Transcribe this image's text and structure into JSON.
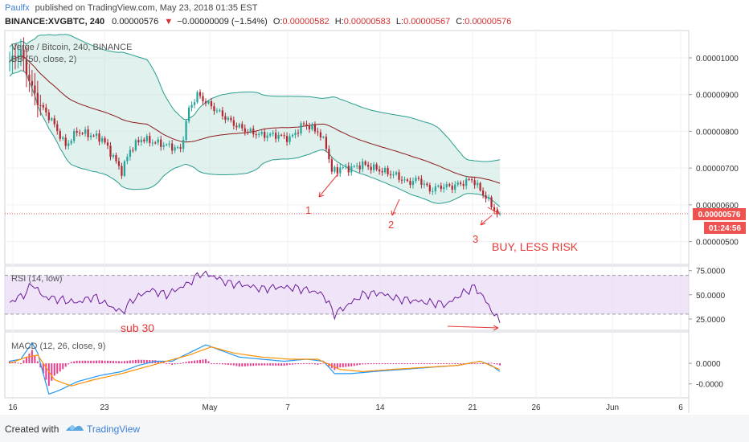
{
  "header": {
    "author": "Paulfx",
    "published": "published on TradingView.com, May 23, 2018 01:35 EST",
    "symbol": "BINANCE:XVGBTC, 240",
    "last": "0.00000576",
    "change": "−0.00000009 (−1.54%)",
    "ohlc": [
      {
        "k": "O:",
        "v": "0.00000582"
      },
      {
        "k": "H:",
        "v": "0.00000583"
      },
      {
        "k": "L:",
        "v": "0.00000567"
      },
      {
        "k": "C:",
        "v": "0.00000576"
      }
    ]
  },
  "colors": {
    "up": "#26a69a",
    "down": "#b22833",
    "accent": "#ef5350",
    "annot": "#e53935",
    "band": "#c8e6de",
    "bandLine": "#2a9d8f",
    "basis": "#8b1a1a"
  },
  "footer": {
    "created_with": "Created with",
    "brand": "TradingView"
  },
  "chart_data": [
    {
      "type": "candlestick",
      "title": "Verge / Bitcoin, 240, BINANCE",
      "indicator": "BB (50, close, 2)",
      "ylim": [
        4.4e-06,
        1.07e-05
      ],
      "yticks": [
        "0.00001000",
        "0.00000900",
        "0.00000800",
        "0.00000700",
        "0.00000600",
        "0.00000500"
      ],
      "ytick_values": [
        1e-05,
        9e-06,
        8e-06,
        7e-06,
        6e-06,
        5e-06
      ],
      "price_label": "0.00000576",
      "timer_label": "01:24:56",
      "x_axis_ticks": [
        "16",
        "23",
        "May",
        "7",
        "14",
        "21",
        "26",
        "Jun",
        "6"
      ],
      "close_anchors": [
        [
          0,
          9.9e-06
        ],
        [
          4,
          1.02e-05
        ],
        [
          6,
          9.6e-06
        ],
        [
          10,
          8.8e-06
        ],
        [
          15,
          8.3e-06
        ],
        [
          20,
          7.6e-06
        ],
        [
          24,
          8e-06
        ],
        [
          29,
          7.9e-06
        ],
        [
          33,
          7.8e-06
        ],
        [
          37,
          7.3e-06
        ],
        [
          40,
          6.9e-06
        ],
        [
          43,
          7.5e-06
        ],
        [
          47,
          7.8e-06
        ],
        [
          52,
          7.7e-06
        ],
        [
          57,
          7.6e-06
        ],
        [
          61,
          7.5e-06
        ],
        [
          64,
          8.6e-06
        ],
        [
          67,
          9e-06
        ],
        [
          70,
          8.8e-06
        ],
        [
          75,
          8.5e-06
        ],
        [
          80,
          8.2e-06
        ],
        [
          85,
          8e-06
        ],
        [
          90,
          7.9e-06
        ],
        [
          95,
          7.9e-06
        ],
        [
          100,
          7.8e-06
        ],
        [
          105,
          8.2e-06
        ],
        [
          110,
          8e-06
        ],
        [
          113,
          7.6e-06
        ],
        [
          115,
          6.9e-06
        ],
        [
          118,
          7e-06
        ],
        [
          122,
          7e-06
        ],
        [
          126,
          7.1e-06
        ],
        [
          130,
          7e-06
        ],
        [
          134,
          6.9e-06
        ],
        [
          138,
          6.8e-06
        ],
        [
          142,
          6.6e-06
        ],
        [
          146,
          6.7e-06
        ],
        [
          150,
          6.4e-06
        ],
        [
          154,
          6.5e-06
        ],
        [
          158,
          6.5e-06
        ],
        [
          162,
          6.6e-06
        ],
        [
          165,
          6.7e-06
        ],
        [
          168,
          6.4e-06
        ],
        [
          171,
          6.1e-06
        ],
        [
          174,
          5.76e-06
        ]
      ],
      "annotations": [
        "1",
        "2",
        "3",
        "BUY, LESS RISK"
      ]
    },
    {
      "type": "line",
      "title": "RSI (14, low)",
      "ylim": [
        15,
        78
      ],
      "yticks": [
        "75.0000",
        "50.0000",
        "25.0000"
      ],
      "ytick_values": [
        75,
        50,
        25
      ],
      "band": [
        30,
        70
      ],
      "anchors": [
        [
          0,
          42
        ],
        [
          6,
          52
        ],
        [
          8,
          62
        ],
        [
          12,
          48
        ],
        [
          18,
          45
        ],
        [
          24,
          42
        ],
        [
          30,
          48
        ],
        [
          36,
          38
        ],
        [
          40,
          32
        ],
        [
          44,
          45
        ],
        [
          50,
          55
        ],
        [
          56,
          50
        ],
        [
          60,
          56
        ],
        [
          64,
          62
        ],
        [
          68,
          72
        ],
        [
          72,
          70
        ],
        [
          78,
          62
        ],
        [
          84,
          60
        ],
        [
          90,
          56
        ],
        [
          96,
          58
        ],
        [
          102,
          57
        ],
        [
          108,
          54
        ],
        [
          112,
          50
        ],
        [
          116,
          30
        ],
        [
          120,
          38
        ],
        [
          126,
          50
        ],
        [
          132,
          52
        ],
        [
          138,
          46
        ],
        [
          144,
          44
        ],
        [
          150,
          42
        ],
        [
          156,
          40
        ],
        [
          162,
          52
        ],
        [
          166,
          58
        ],
        [
          169,
          48
        ],
        [
          172,
          34
        ],
        [
          175,
          22
        ]
      ],
      "annotation": "sub 30"
    },
    {
      "type": "macd",
      "title": "MACD (12, 26, close, 9)",
      "ylim": [
        -1.6,
        1.45
      ],
      "yticks": [
        "0.0000",
        "-0.0000"
      ],
      "ytick_values": [
        0,
        -1
      ],
      "macd_anchors": [
        [
          0,
          0.1
        ],
        [
          4,
          0.2
        ],
        [
          8,
          1.0
        ],
        [
          10,
          0.5
        ],
        [
          14,
          -1.5
        ],
        [
          18,
          -1.3
        ],
        [
          24,
          -0.9
        ],
        [
          32,
          -0.6
        ],
        [
          40,
          -0.4
        ],
        [
          46,
          -0.1
        ],
        [
          52,
          0.1
        ],
        [
          58,
          0.1
        ],
        [
          64,
          0.5
        ],
        [
          70,
          0.9
        ],
        [
          76,
          0.6
        ],
        [
          82,
          0.3
        ],
        [
          90,
          0.2
        ],
        [
          98,
          0.1
        ],
        [
          106,
          0.2
        ],
        [
          112,
          0.1
        ],
        [
          116,
          -0.5
        ],
        [
          122,
          -0.5
        ],
        [
          130,
          -0.4
        ],
        [
          140,
          -0.3
        ],
        [
          150,
          -0.2
        ],
        [
          160,
          -0.1
        ],
        [
          168,
          0.1
        ],
        [
          172,
          -0.1
        ],
        [
          175,
          -0.4
        ]
      ],
      "signal_anchors": [
        [
          0,
          0.0
        ],
        [
          6,
          0.3
        ],
        [
          10,
          0.4
        ],
        [
          16,
          -0.8
        ],
        [
          22,
          -1.1
        ],
        [
          30,
          -0.8
        ],
        [
          40,
          -0.5
        ],
        [
          48,
          -0.2
        ],
        [
          56,
          0.1
        ],
        [
          64,
          0.4
        ],
        [
          72,
          0.8
        ],
        [
          80,
          0.5
        ],
        [
          90,
          0.3
        ],
        [
          100,
          0.2
        ],
        [
          110,
          0.2
        ],
        [
          118,
          -0.3
        ],
        [
          126,
          -0.4
        ],
        [
          136,
          -0.3
        ],
        [
          148,
          -0.2
        ],
        [
          160,
          -0.1
        ],
        [
          168,
          0.1
        ],
        [
          175,
          -0.3
        ]
      ]
    }
  ]
}
